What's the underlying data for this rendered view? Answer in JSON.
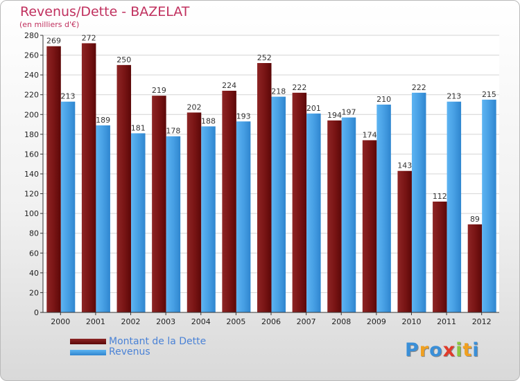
{
  "chart_data": {
    "type": "bar",
    "title": "Revenus/Dette - BAZELAT",
    "subtitle": "(en milliers d'€)",
    "categories": [
      "2000",
      "2001",
      "2002",
      "2003",
      "2004",
      "2005",
      "2006",
      "2007",
      "2008",
      "2009",
      "2010",
      "2011",
      "2012"
    ],
    "series": [
      {
        "name": "Montant de la Dette",
        "color": "#7a1010",
        "values": [
          269,
          272,
          250,
          219,
          202,
          224,
          252,
          222,
          194,
          174,
          143,
          112,
          89
        ]
      },
      {
        "name": "Revenus",
        "color": "#4aa3e6",
        "values": [
          213,
          189,
          181,
          178,
          188,
          193,
          218,
          201,
          197,
          210,
          222,
          213,
          215
        ]
      }
    ],
    "ylim": [
      0,
      280
    ],
    "yticks": [
      0,
      20,
      40,
      60,
      80,
      100,
      120,
      140,
      160,
      180,
      200,
      220,
      240,
      260,
      280
    ],
    "grid": true,
    "legend_position": "bottom-left"
  },
  "branding": {
    "logo_letters": [
      "P",
      "r",
      "o",
      "x",
      "i",
      "t",
      "i"
    ]
  }
}
